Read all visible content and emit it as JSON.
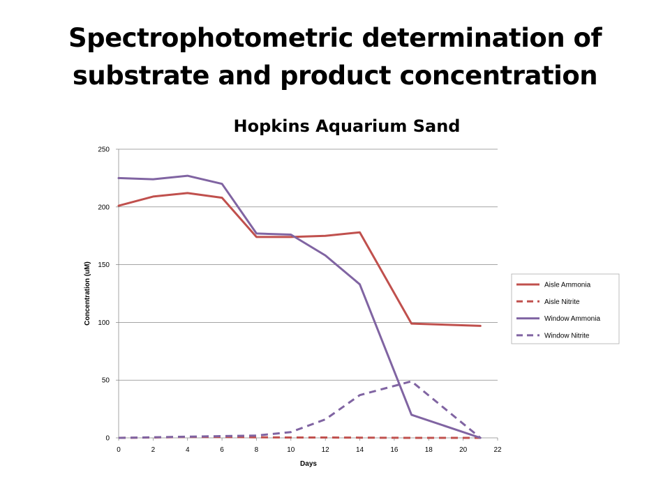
{
  "slide": {
    "title_line1": "Spectrophotometric determination of",
    "title_line2": "substrate and product concentration"
  },
  "chart_data": {
    "type": "line",
    "title": "Hopkins Aquarium Sand",
    "xlabel": "Days",
    "ylabel": "Concentration (uM)",
    "xlim": [
      0,
      22
    ],
    "ylim": [
      0,
      250
    ],
    "xticks": [
      0,
      2,
      4,
      6,
      8,
      10,
      12,
      14,
      16,
      18,
      20,
      22
    ],
    "yticks": [
      0,
      50,
      100,
      150,
      200,
      250
    ],
    "grid": "horizontal",
    "legend_position": "right",
    "series": [
      {
        "name": "Aisle Ammonia",
        "color": "#c0504d",
        "dash": "solid",
        "x": [
          0,
          2,
          4,
          6,
          8,
          10,
          12,
          14,
          17,
          21
        ],
        "y": [
          201,
          209,
          212,
          208,
          174,
          174,
          175,
          178,
          99,
          97
        ]
      },
      {
        "name": "Aisle Nitrite",
        "color": "#c0504d",
        "dash": "dashed",
        "x": [
          0,
          2,
          4,
          6,
          8,
          10,
          12,
          14,
          17,
          21
        ],
        "y": [
          0,
          0.3,
          0.8,
          0.8,
          0.5,
          0.3,
          0.3,
          0.2,
          0,
          0
        ]
      },
      {
        "name": "Window Ammonia",
        "color": "#8064a2",
        "dash": "solid",
        "x": [
          0,
          2,
          4,
          6,
          8,
          10,
          12,
          14,
          17,
          21
        ],
        "y": [
          225,
          224,
          227,
          220,
          177,
          176,
          158,
          133,
          20,
          0
        ]
      },
      {
        "name": "Window Nitrite",
        "color": "#8064a2",
        "dash": "dashed",
        "x": [
          0,
          2,
          4,
          6,
          8,
          10,
          12,
          14,
          17,
          21
        ],
        "y": [
          0,
          0.5,
          1,
          1.5,
          2,
          5,
          16,
          37,
          49,
          0
        ]
      }
    ]
  }
}
